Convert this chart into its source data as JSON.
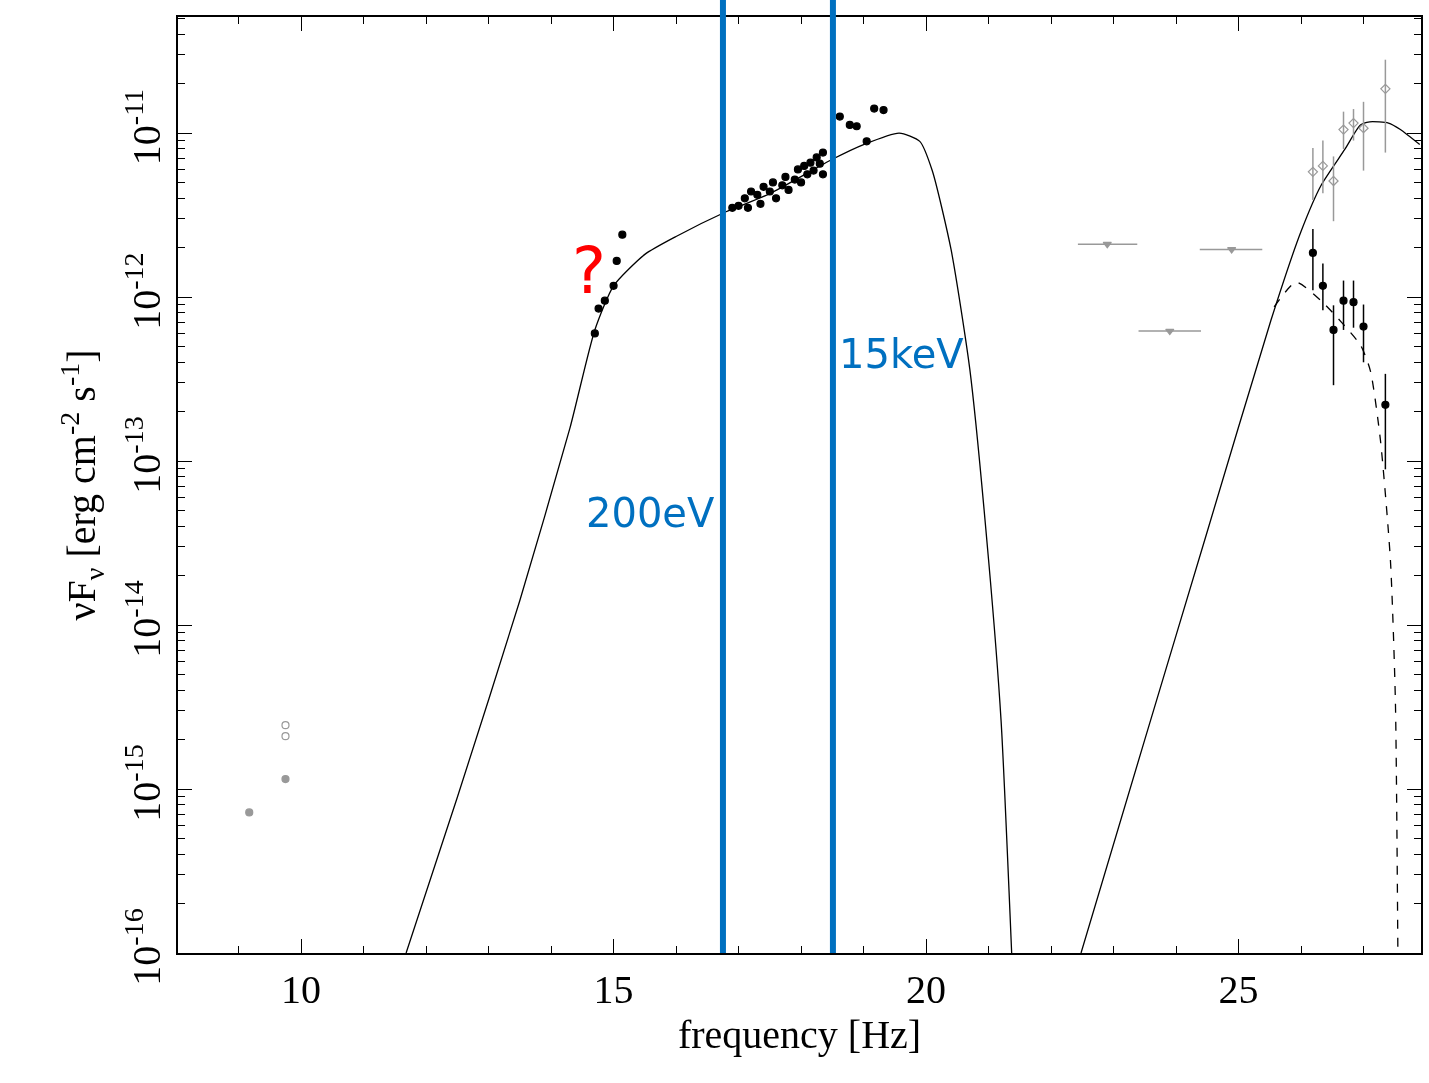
{
  "chart_data": {
    "type": "scatter",
    "xlabel": "frequency [Hz]",
    "ylabel": "νF$_{ν}$ [erg cm$^{-2}$ s$^{-1}$]",
    "log": "y",
    "xlim": [
      8.03,
      27.92
    ],
    "xticks": [
      10,
      15,
      20,
      25
    ],
    "ylim": [
      1e-16,
      5.1e-11
    ],
    "yticks": [
      {
        "value": 1e-16,
        "label": "10$^{-16}$"
      },
      {
        "value": 1e-15,
        "label": "10$^{-15}$"
      },
      {
        "value": 1e-14,
        "label": "10$^{-14}$"
      },
      {
        "value": 1e-13,
        "label": "10$^{-13}$"
      },
      {
        "value": 1e-12,
        "label": "10$^{-12}$"
      },
      {
        "value": 1e-11,
        "label": "10$^{-11}$"
      }
    ],
    "series": [
      {
        "type": "line",
        "color": "#000000",
        "line_style": "solid",
        "marker": "none",
        "x": [
          11.68,
          12.5,
          13.5,
          14.3,
          14.7,
          15.0,
          15.5,
          16.0,
          16.8,
          17.5,
          18.5,
          19.0,
          19.57,
          19.9,
          20.1,
          20.4,
          20.7,
          21.0,
          21.2,
          21.37
        ],
        "values": [
          1e-16,
          8.9e-16,
          1.41e-14,
          1.58e-13,
          6.3e-13,
          1.17e-12,
          1.82e-12,
          2.34e-12,
          3.31e-12,
          4.27e-12,
          6.92e-12,
          8.51e-12,
          1e-11,
          8.9e-12,
          5.89e-12,
          1.95e-12,
          3.63e-13,
          2.51e-14,
          2.63e-15,
          1e-16
        ]
      },
      {
        "type": "line",
        "color": "#000000",
        "line_style": "solid",
        "marker": "none",
        "x": [
          22.48,
          23.5,
          24.5,
          25.52,
          26.0,
          26.32,
          26.7,
          26.95,
          27.1,
          27.4,
          27.59,
          27.9
        ],
        "values": [
          1e-16,
          2e-15,
          3.72e-14,
          7.24e-13,
          2.51e-12,
          4.79e-12,
          7.94e-12,
          1.12e-11,
          1.17e-11,
          1.15e-11,
          1.05e-11,
          8.5e-12
        ]
      },
      {
        "type": "line",
        "color": "#000000",
        "line_style": "dashed",
        "marker": "none",
        "x": [
          25.57,
          25.92,
          26.32,
          26.95,
          27.11,
          27.27,
          27.43,
          27.51,
          27.55
        ],
        "values": [
          8.7e-13,
          1.23e-12,
          9.5e-13,
          5.1e-13,
          3.55e-13,
          1.35e-13,
          2.51e-14,
          3.47e-15,
          1e-16
        ]
      },
      {
        "color": "#000000",
        "marker": "circle",
        "x": [
          14.7,
          14.76,
          14.86,
          15.0,
          15.05,
          15.14
        ],
        "values": [
          6e-13,
          8.5e-13,
          9.5e-13,
          1.17e-12,
          1.66e-12,
          2.4e-12
        ]
      },
      {
        "color": "#000000",
        "marker": "circle",
        "x": [
          16.9,
          17.0,
          17.1,
          17.15,
          17.2,
          17.3,
          17.35,
          17.4,
          17.5,
          17.55,
          17.6,
          17.7,
          17.75,
          17.8,
          17.9,
          17.95,
          18.0,
          18.05,
          18.1,
          18.15,
          18.2,
          18.25,
          18.3,
          18.35,
          18.35
        ],
        "values": [
          3.5e-12,
          3.6e-12,
          4e-12,
          3.5e-12,
          4.4e-12,
          4.2e-12,
          3.7e-12,
          4.7e-12,
          4.4e-12,
          5e-12,
          4e-12,
          4.8e-12,
          5.4e-12,
          4.5e-12,
          5.2e-12,
          6e-12,
          5e-12,
          6.3e-12,
          5.6e-12,
          6.6e-12,
          5.9e-12,
          7.1e-12,
          6.5e-12,
          7.6e-12,
          5.6e-12
        ]
      },
      {
        "color": "#000000",
        "marker": "circle",
        "x": [
          18.62,
          18.78,
          18.89,
          19.05,
          19.17,
          19.32
        ],
        "values": [
          1.26e-11,
          1.12e-11,
          1.1e-11,
          8.9e-12,
          1.41e-11,
          1.38e-11
        ]
      },
      {
        "color": "#000000",
        "marker": "circle",
        "x": [
          26.19,
          26.35,
          26.52,
          26.68,
          26.84,
          27.0,
          27.35
        ],
        "values": [
          1.86e-12,
          1.17e-12,
          6.3e-13,
          9.5e-13,
          9.3e-13,
          6.6e-13,
          2.2e-13
        ],
        "errors": [
          [
            1.1e-12,
            2.6e-12
          ],
          [
            8.3e-13,
            1.6e-12
          ],
          [
            2.9e-13,
            8.9e-13
          ],
          [
            6.3e-13,
            1.26e-12
          ],
          [
            6.5e-13,
            1.26e-12
          ],
          [
            4e-13,
            9e-13
          ],
          [
            8.9e-14,
            3.4e-13
          ]
        ]
      },
      {
        "color": "#999999",
        "marker": "diamond-open",
        "x": [
          26.19,
          26.35,
          26.52,
          26.68,
          26.84,
          27.0,
          27.35
        ],
        "values": [
          5.8e-12,
          6.3e-12,
          5.1e-12,
          1.05e-11,
          1.15e-11,
          1.07e-11,
          1.86e-11
        ],
        "errors": [
          [
            3.9e-12,
            8.1e-12
          ],
          [
            4.3e-12,
            9e-12
          ],
          [
            2.9e-12,
            7.2e-12
          ],
          [
            8e-12,
            1.35e-11
          ],
          [
            9e-12,
            1.4e-11
          ],
          [
            5.9e-12,
            1.55e-11
          ],
          [
            7.6e-12,
            2.8e-11
          ]
        ]
      },
      {
        "color": "#999999",
        "marker": "triangle",
        "x": [
          22.9,
          23.9,
          24.89
        ],
        "values": [
          2.1e-12,
          6.2e-13,
          1.95e-12
        ],
        "xerrors": [
          [
            22.43,
            23.38
          ],
          [
            23.4,
            24.4
          ],
          [
            24.38,
            25.38
          ]
        ]
      },
      {
        "color": "#999999",
        "marker": "circle",
        "x": [
          9.17,
          9.75
        ],
        "values": [
          7.2e-16,
          1.15e-15
        ]
      },
      {
        "color": "#999999",
        "marker": "circle-open",
        "x": [
          9.75,
          9.75
        ],
        "values": [
          2.45e-15,
          2.1e-15
        ]
      }
    ],
    "ref_lines": [
      {
        "axis": "x",
        "value": 16.75,
        "label": "200eV",
        "color": "#0070c0"
      },
      {
        "axis": "x",
        "value": 18.51,
        "label": "15keV",
        "color": "#0070c0"
      }
    ],
    "annotations": [
      "?"
    ]
  }
}
